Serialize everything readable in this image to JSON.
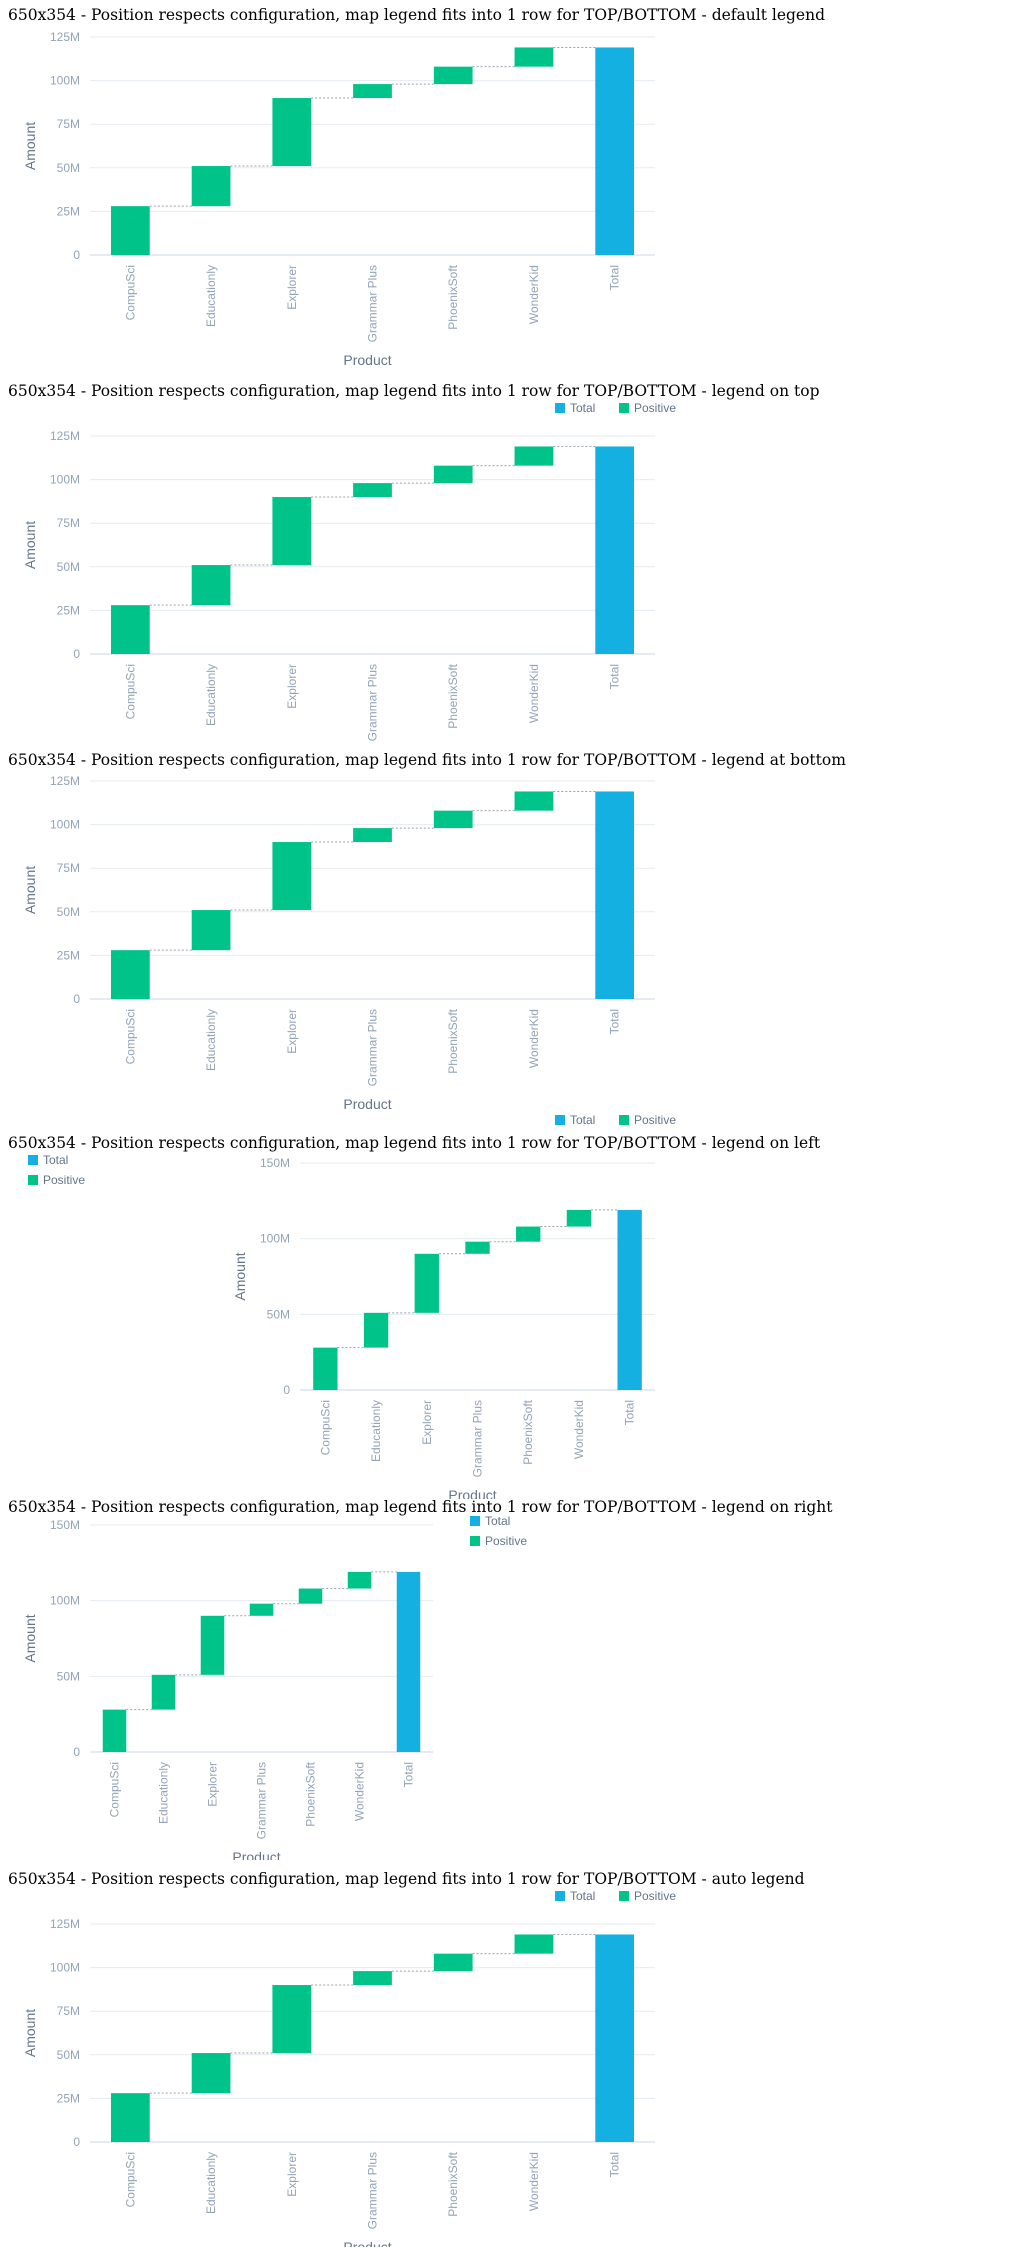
{
  "colors": {
    "total": "#14b0e2",
    "positive": "#00c38a",
    "grid": "#e6ebf1",
    "connector": "#9aa3ad",
    "axis": "#ccd6eb"
  },
  "sections": [
    {
      "title": "650x354 - Position respects configuration, map legend fits into 1 row for TOP/BOTTOM - default legend",
      "legend_position": "none",
      "chart_data": {
        "type": "bar",
        "subtype": "waterfall",
        "categories": [
          "CompuSci",
          "Educationly",
          "Explorer",
          "Grammar Plus",
          "PhoenixSoft",
          "WonderKid",
          "Total"
        ],
        "values": [
          28,
          23,
          39,
          8,
          10,
          11,
          119
        ],
        "ylim": [
          0,
          125
        ],
        "yticks": [
          "0",
          "25M",
          "50M",
          "75M",
          "100M",
          "125M"
        ],
        "ytick_values": [
          0,
          25,
          50,
          75,
          100,
          125
        ],
        "xlabel": "Product",
        "ylabel": "Amount",
        "legend": []
      }
    },
    {
      "title": "650x354 - Position respects configuration, map legend fits into 1 row for TOP/BOTTOM - legend on top",
      "legend_position": "top",
      "chart_data": {
        "type": "bar",
        "subtype": "waterfall",
        "categories": [
          "CompuSci",
          "Educationly",
          "Explorer",
          "Grammar Plus",
          "PhoenixSoft",
          "WonderKid",
          "Total"
        ],
        "values": [
          28,
          23,
          39,
          8,
          10,
          11,
          119
        ],
        "ylim": [
          0,
          125
        ],
        "yticks": [
          "0",
          "25M",
          "50M",
          "75M",
          "100M",
          "125M"
        ],
        "ytick_values": [
          0,
          25,
          50,
          75,
          100,
          125
        ],
        "xlabel": "Product",
        "ylabel": "Amount",
        "legend": [
          "Total",
          "Positive"
        ]
      }
    },
    {
      "title": "650x354 - Position respects configuration, map legend fits into 1 row for TOP/BOTTOM - legend at bottom",
      "legend_position": "bottom",
      "chart_data": {
        "type": "bar",
        "subtype": "waterfall",
        "categories": [
          "CompuSci",
          "Educationly",
          "Explorer",
          "Grammar Plus",
          "PhoenixSoft",
          "WonderKid",
          "Total"
        ],
        "values": [
          28,
          23,
          39,
          8,
          10,
          11,
          119
        ],
        "ylim": [
          0,
          125
        ],
        "yticks": [
          "0",
          "25M",
          "50M",
          "75M",
          "100M",
          "125M"
        ],
        "ytick_values": [
          0,
          25,
          50,
          75,
          100,
          125
        ],
        "xlabel": "Product",
        "ylabel": "Amount",
        "legend": [
          "Total",
          "Positive"
        ]
      }
    },
    {
      "title": "650x354 - Position respects configuration, map legend fits into 1 row for TOP/BOTTOM - legend on left",
      "legend_position": "left",
      "chart_data": {
        "type": "bar",
        "subtype": "waterfall",
        "categories": [
          "CompuSci",
          "Educationly",
          "Explorer",
          "Grammar Plus",
          "PhoenixSoft",
          "WonderKid",
          "Total"
        ],
        "values": [
          28,
          23,
          39,
          8,
          10,
          11,
          119
        ],
        "ylim": [
          0,
          150
        ],
        "yticks": [
          "0",
          "50M",
          "100M",
          "150M"
        ],
        "ytick_values": [
          0,
          50,
          100,
          150
        ],
        "xlabel": "Product",
        "ylabel": "Amount",
        "legend": [
          "Total",
          "Positive"
        ]
      }
    },
    {
      "title": "650x354 - Position respects configuration, map legend fits into 1 row for TOP/BOTTOM - legend on right",
      "legend_position": "right",
      "chart_data": {
        "type": "bar",
        "subtype": "waterfall",
        "categories": [
          "CompuSci",
          "Educationly",
          "Explorer",
          "Grammar Plus",
          "PhoenixSoft",
          "WonderKid",
          "Total"
        ],
        "values": [
          28,
          23,
          39,
          8,
          10,
          11,
          119
        ],
        "ylim": [
          0,
          150
        ],
        "yticks": [
          "0",
          "50M",
          "100M",
          "150M"
        ],
        "ytick_values": [
          0,
          50,
          100,
          150
        ],
        "xlabel": "Product",
        "ylabel": "Amount",
        "legend": [
          "Total",
          "Positive"
        ]
      }
    },
    {
      "title": "650x354 - Position respects configuration, map legend fits into 1 row for TOP/BOTTOM - auto legend",
      "legend_position": "top",
      "chart_data": {
        "type": "bar",
        "subtype": "waterfall",
        "categories": [
          "CompuSci",
          "Educationly",
          "Explorer",
          "Grammar Plus",
          "PhoenixSoft",
          "WonderKid",
          "Total"
        ],
        "values": [
          28,
          23,
          39,
          8,
          10,
          11,
          119
        ],
        "ylim": [
          0,
          125
        ],
        "yticks": [
          "0",
          "25M",
          "50M",
          "75M",
          "100M",
          "125M"
        ],
        "ytick_values": [
          0,
          25,
          50,
          75,
          100,
          125
        ],
        "xlabel": "Product",
        "ylabel": "Amount",
        "legend": [
          "Total",
          "Positive"
        ]
      }
    }
  ]
}
